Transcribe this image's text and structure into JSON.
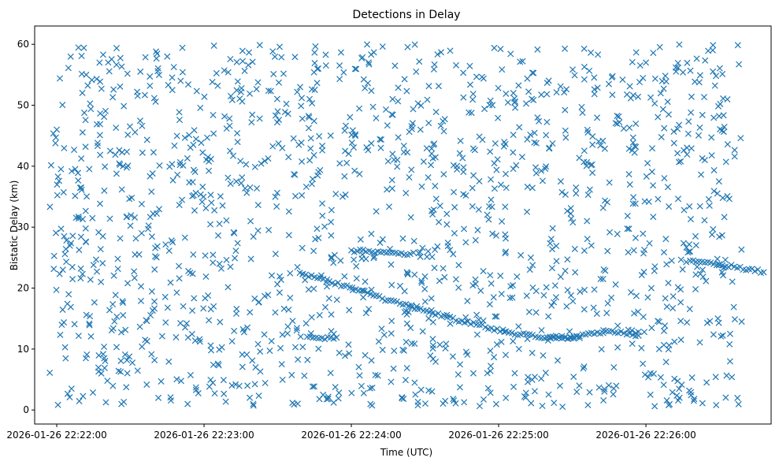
{
  "chart_data": {
    "type": "scatter",
    "title": "Detections in Delay",
    "xlabel": "Time (UTC)",
    "ylabel": "Bistatic Delay (km)",
    "marker": "x",
    "color": "#1f77b4",
    "grid": false,
    "legend": "none",
    "x_ticks": [
      "2026-01-26 22:22:00",
      "2026-01-26 22:23:00",
      "2026-01-26 22:24:00",
      "2026-01-26 22:25:00",
      "2026-01-26 22:26:00"
    ],
    "y_ticks": [
      "0",
      "10",
      "20",
      "30",
      "40",
      "50",
      "60"
    ],
    "xlim": [
      "2026-01-26 22:21:51",
      "2026-01-26 22:26:51"
    ],
    "ylim": [
      -2.3,
      63
    ],
    "tracks": [
      {
        "description": "dense descending track",
        "points": [
          [
            "2026-01-26 22:23:39",
            22.5
          ],
          [
            "2026-01-26 22:23:45",
            21.8
          ],
          [
            "2026-01-26 22:23:51",
            21.1
          ],
          [
            "2026-01-26 22:23:57",
            20.4
          ],
          [
            "2026-01-26 22:24:03",
            19.6
          ],
          [
            "2026-01-26 22:24:09",
            18.8
          ],
          [
            "2026-01-26 22:24:15",
            18.0
          ],
          [
            "2026-01-26 22:24:21",
            17.3
          ],
          [
            "2026-01-26 22:24:27",
            16.6
          ],
          [
            "2026-01-26 22:24:33",
            15.9
          ],
          [
            "2026-01-26 22:24:39",
            15.2
          ],
          [
            "2026-01-26 22:24:45",
            14.6
          ],
          [
            "2026-01-26 22:24:51",
            14.0
          ],
          [
            "2026-01-26 22:24:57",
            13.4
          ],
          [
            "2026-01-26 22:25:03",
            12.9
          ],
          [
            "2026-01-26 22:25:09",
            12.4
          ],
          [
            "2026-01-26 22:25:15",
            12.0
          ],
          [
            "2026-01-26 22:25:21",
            11.8
          ],
          [
            "2026-01-26 22:25:27",
            11.9
          ],
          [
            "2026-01-26 22:25:33",
            12.1
          ],
          [
            "2026-01-26 22:25:39",
            12.5
          ],
          [
            "2026-01-26 22:25:45",
            12.9
          ],
          [
            "2026-01-26 22:25:51",
            12.6
          ],
          [
            "2026-01-26 22:25:57",
            12.2
          ]
        ]
      },
      {
        "description": "track near 26 km",
        "points": [
          [
            "2026-01-26 22:24:00",
            26.2
          ],
          [
            "2026-01-26 22:24:06",
            26.0
          ],
          [
            "2026-01-26 22:24:12",
            25.9
          ],
          [
            "2026-01-26 22:24:18",
            25.8
          ],
          [
            "2026-01-26 22:24:24",
            25.6
          ]
        ]
      },
      {
        "description": "track near 24 km",
        "points": [
          [
            "2026-01-26 22:26:18",
            24.5
          ],
          [
            "2026-01-26 22:26:24",
            24.2
          ],
          [
            "2026-01-26 22:26:30",
            23.9
          ],
          [
            "2026-01-26 22:26:36",
            23.5
          ],
          [
            "2026-01-26 22:26:42",
            23.1
          ],
          [
            "2026-01-26 22:26:48",
            22.6
          ]
        ]
      },
      {
        "description": "track near 12 km",
        "points": [
          [
            "2026-01-26 22:23:42",
            12.0
          ],
          [
            "2026-01-26 22:23:48",
            11.8
          ],
          [
            "2026-01-26 22:23:54",
            11.9
          ],
          [
            "2026-01-26 22:25:21",
            12.0
          ],
          [
            "2026-01-26 22:25:27",
            11.9
          ],
          [
            "2026-01-26 22:25:33",
            11.8
          ]
        ]
      }
    ],
    "clutter": {
      "description": "scattered noise detections across the full range",
      "x_range": [
        "2026-01-26 22:21:57",
        "2026-01-26 22:26:39"
      ],
      "y_range": [
        0.5,
        60
      ],
      "approx_count": 1500,
      "sample_points": [
        [
          "2026-01-26 22:22:00",
          46.0
        ],
        [
          "2026-01-26 22:22:03",
          28.5
        ],
        [
          "2026-01-26 22:22:06",
          3.5
        ],
        [
          "2026-01-26 22:22:12",
          55.0
        ],
        [
          "2026-01-26 22:22:18",
          21.0
        ],
        [
          "2026-01-26 22:22:27",
          40.0
        ],
        [
          "2026-01-26 22:22:36",
          11.5
        ],
        [
          "2026-01-26 22:22:45",
          58.0
        ],
        [
          "2026-01-26 22:23:03",
          34.0
        ],
        [
          "2026-01-26 22:23:21",
          7.0
        ],
        [
          "2026-01-26 22:23:30",
          49.0
        ],
        [
          "2026-01-26 22:24:12",
          43.0
        ],
        [
          "2026-01-26 22:24:42",
          29.0
        ],
        [
          "2026-01-26 22:25:06",
          52.0
        ],
        [
          "2026-01-26 22:25:36",
          31.0
        ],
        [
          "2026-01-26 22:26:00",
          57.0
        ],
        [
          "2026-01-26 22:26:24",
          41.0
        ],
        [
          "2026-01-26 22:26:39",
          14.5
        ]
      ]
    }
  }
}
